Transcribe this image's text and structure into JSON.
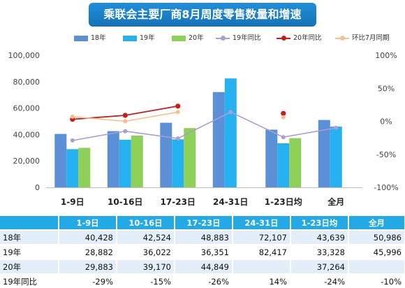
{
  "title": "乘联会主要厂商8月周度零售数量和增速",
  "colors": {
    "s18": "#5b8fd6",
    "s19": "#26b2f0",
    "s20": "#8fd158",
    "yoy19": "#a99dd6",
    "yoy20": "#c41e1e",
    "mom": "#f7bf8c"
  },
  "legend": [
    "18年",
    "19年",
    "20年",
    "19年同比",
    "20年同比",
    "环比7月同期"
  ],
  "chart_data": {
    "type": "bar",
    "categories": [
      "1-9日",
      "10-16日",
      "17-23日",
      "24-31日",
      "1-23日均",
      "全月"
    ],
    "series": [
      {
        "name": "18年",
        "values": [
          40428,
          42524,
          48883,
          72107,
          43639,
          50986
        ]
      },
      {
        "name": "19年",
        "values": [
          28882,
          36022,
          36351,
          82417,
          33328,
          45996
        ]
      },
      {
        "name": "20年",
        "values": [
          29883,
          39170,
          44849,
          null,
          37264,
          null
        ]
      }
    ],
    "line_series": [
      {
        "name": "19年同比",
        "values": [
          -29,
          -15,
          -26,
          14,
          -24,
          -10
        ]
      },
      {
        "name": "20年同比",
        "values": [
          3,
          9,
          23,
          null,
          12,
          null
        ]
      },
      {
        "name": "环比7月同期",
        "values": [
          7,
          0,
          14,
          null,
          6,
          null
        ]
      }
    ],
    "y_left": {
      "min": 0,
      "max": 100000,
      "ticks": [
        "0",
        "20,000",
        "40,000",
        "60,000",
        "80,000",
        "100,000"
      ]
    },
    "y_right": {
      "min": -100,
      "max": 100,
      "ticks": [
        "-100%",
        "-50%",
        "0%",
        "50%",
        "100%"
      ]
    },
    "legend_position": "top"
  },
  "table": {
    "headers": [
      "",
      "1-9日",
      "10-16日",
      "17-23日",
      "24-31日",
      "1-23日均",
      "全月"
    ],
    "rows": [
      [
        "18年",
        "40,428",
        "42,524",
        "48,883",
        "72,107",
        "43,639",
        "50,986"
      ],
      [
        "19年",
        "28,882",
        "36,022",
        "36,351",
        "82,417",
        "33,328",
        "45,996"
      ],
      [
        "20年",
        "29,883",
        "39,170",
        "44,849",
        "",
        "37,264",
        ""
      ],
      [
        "19年同比",
        "-29%",
        "-15%",
        "-26%",
        "14%",
        "-24%",
        "-10%"
      ]
    ]
  }
}
